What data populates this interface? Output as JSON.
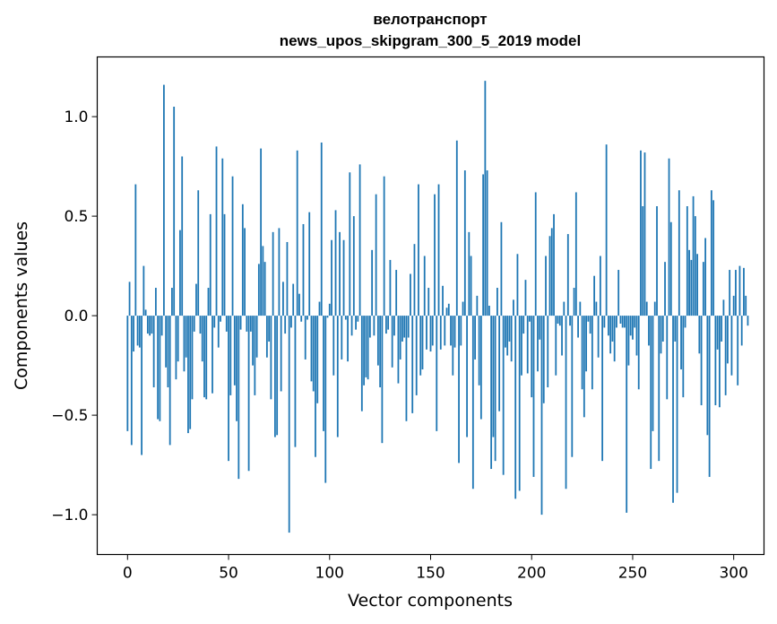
{
  "chart_data": {
    "type": "bar",
    "title": "велотранспорт",
    "subtitle": "news_upos_skipgram_300_5_2019 model",
    "xlabel": "Vector components",
    "ylabel": "Components values",
    "xlim": [
      -15,
      315
    ],
    "ylim": [
      -1.2,
      1.3
    ],
    "xticks": [
      0,
      50,
      100,
      150,
      200,
      250,
      300
    ],
    "xtick_labels": [
      "0",
      "50",
      "100",
      "150",
      "200",
      "250",
      "300"
    ],
    "yticks": [
      -1.0,
      -0.5,
      0.0,
      0.5,
      1.0
    ],
    "ytick_labels": [
      "−1.0",
      "−0.5",
      "0.0",
      "0.5",
      "1.0"
    ],
    "grid": false,
    "bar_color": "#1f77b4",
    "values": [
      -0.58,
      0.17,
      -0.65,
      -0.18,
      0.66,
      -0.15,
      -0.16,
      -0.7,
      0.25,
      0.03,
      -0.09,
      -0.1,
      -0.09,
      -0.36,
      0.14,
      -0.52,
      -0.53,
      -0.1,
      1.16,
      -0.26,
      -0.36,
      -0.65,
      0.14,
      1.05,
      -0.32,
      -0.23,
      0.43,
      0.8,
      -0.28,
      -0.21,
      -0.59,
      -0.57,
      -0.42,
      -0.08,
      0.16,
      0.63,
      -0.09,
      -0.23,
      -0.41,
      -0.42,
      0.14,
      0.51,
      -0.39,
      -0.06,
      0.85,
      -0.16,
      -0.03,
      0.79,
      0.51,
      -0.08,
      -0.73,
      -0.4,
      0.7,
      -0.35,
      -0.53,
      -0.82,
      -0.07,
      0.56,
      0.44,
      -0.08,
      -0.78,
      -0.08,
      -0.25,
      -0.4,
      -0.21,
      0.26,
      0.84,
      0.35,
      0.27,
      -0.21,
      -0.13,
      -0.42,
      0.42,
      -0.61,
      -0.6,
      0.44,
      -0.38,
      0.17,
      -0.09,
      0.37,
      -1.09,
      -0.06,
      0.16,
      -0.66,
      0.83,
      0.11,
      -0.03,
      0.46,
      -0.22,
      -0.02,
      0.52,
      -0.33,
      -0.38,
      -0.71,
      -0.44,
      0.07,
      0.87,
      -0.58,
      -0.84,
      -0.01,
      0.06,
      0.38,
      -0.3,
      0.53,
      -0.61,
      0.42,
      -0.22,
      0.38,
      -0.02,
      -0.23,
      0.72,
      -0.1,
      0.5,
      -0.07,
      -0.03,
      0.76,
      -0.48,
      -0.35,
      -0.31,
      -0.32,
      -0.11,
      0.33,
      -0.1,
      0.61,
      -0.25,
      -0.36,
      -0.64,
      0.7,
      -0.09,
      -0.07,
      0.28,
      -0.26,
      -0.1,
      0.23,
      -0.34,
      -0.22,
      -0.13,
      -0.11,
      -0.53,
      -0.11,
      0.21,
      -0.49,
      0.36,
      -0.4,
      0.66,
      -0.3,
      -0.27,
      0.3,
      -0.17,
      0.14,
      -0.18,
      -0.15,
      0.61,
      -0.58,
      0.66,
      -0.17,
      0.15,
      -0.15,
      0.04,
      0.06,
      -0.15,
      -0.3,
      -0.16,
      0.88,
      -0.74,
      -0.15,
      0.07,
      0.73,
      -0.61,
      0.42,
      0.3,
      -0.87,
      -0.22,
      0.1,
      -0.35,
      -0.52,
      0.71,
      1.18,
      0.73,
      0.05,
      -0.77,
      -0.61,
      -0.73,
      0.14,
      -0.48,
      0.47,
      -0.8,
      -0.16,
      -0.2,
      -0.13,
      -0.23,
      0.08,
      -0.92,
      0.31,
      -0.88,
      -0.3,
      -0.09,
      0.18,
      -0.29,
      -0.03,
      -0.41,
      -0.81,
      0.62,
      -0.28,
      -0.12,
      -1.0,
      -0.44,
      0.3,
      -0.36,
      0.4,
      0.44,
      0.51,
      -0.3,
      -0.04,
      -0.05,
      -0.2,
      0.07,
      -0.87,
      0.41,
      -0.05,
      -0.71,
      0.14,
      0.62,
      -0.11,
      0.07,
      -0.37,
      -0.51,
      -0.28,
      -0.03,
      -0.09,
      -0.37,
      0.2,
      0.07,
      -0.21,
      0.3,
      -0.73,
      -0.06,
      0.86,
      -0.1,
      -0.19,
      -0.13,
      -0.23,
      -0.06,
      0.23,
      -0.04,
      -0.06,
      -0.06,
      -0.99,
      -0.25,
      -0.1,
      -0.12,
      -0.06,
      -0.2,
      -0.37,
      0.83,
      0.55,
      0.82,
      0.07,
      -0.15,
      -0.77,
      -0.58,
      0.07,
      0.55,
      -0.73,
      -0.19,
      -0.13,
      0.27,
      -0.42,
      0.79,
      0.47,
      -0.94,
      -0.13,
      -0.89,
      0.63,
      -0.27,
      -0.41,
      -0.06,
      0.55,
      0.33,
      0.28,
      0.6,
      0.5,
      0.31,
      -0.19,
      -0.45,
      0.27,
      0.39,
      -0.6,
      -0.81,
      0.63,
      0.58,
      -0.45,
      -0.17,
      -0.46,
      -0.13,
      0.08,
      -0.4,
      -0.24,
      0.23,
      -0.3,
      0.1,
      0.23,
      -0.35,
      0.25,
      -0.15,
      0.24,
      0.1,
      -0.05
    ]
  }
}
